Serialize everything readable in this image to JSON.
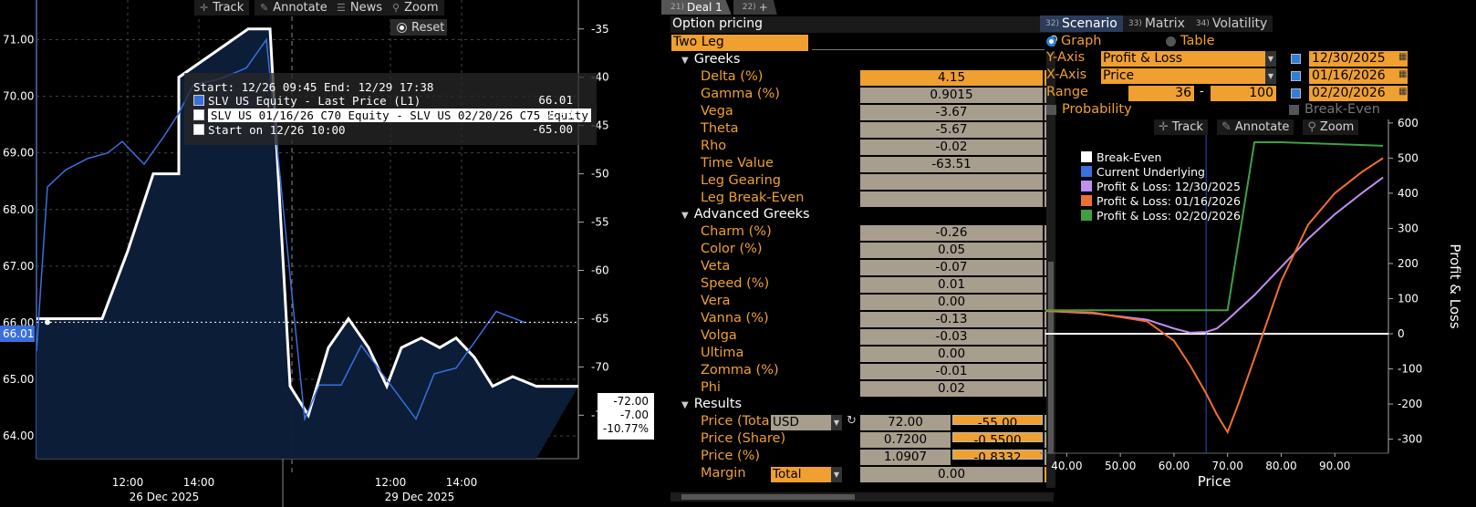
{
  "left_chart": {
    "toolbar": {
      "track": "Track",
      "annotate": "Annotate",
      "news": "News",
      "zoom": "Zoom",
      "reset": "Reset"
    },
    "legend": {
      "header": "Start: 12/26 09:45 End: 12/29 17:38",
      "rows": [
        {
          "label": "SLV US Equity - Last Price (L1)",
          "value": "66.01",
          "color": "#3a6fe0"
        },
        {
          "label": "SLV US 01/16/26 C70 Equity - SLV US 02/20/26 C75 Equity",
          "value": "-72.00",
          "color": "#ffffff"
        },
        {
          "label": "Start on 12/26 10:00",
          "value": "-65.00",
          "color": "#ffffff"
        }
      ]
    },
    "current_tag": "66.01",
    "right_tag": [
      "-72.00",
      "-7.00",
      "-10.77%"
    ],
    "x_labels": [
      "12:00",
      "14:00",
      "12:00",
      "14:00"
    ],
    "date_labels": [
      "26 Dec 2025",
      "29 Dec 2025"
    ]
  },
  "chart_data": [
    {
      "type": "line",
      "title": "",
      "left_axis": {
        "ticks": [
          "64.00",
          "65.00",
          "66.00",
          "67.00",
          "68.00",
          "69.00",
          "70.00",
          "71.00"
        ],
        "range": [
          63.6,
          71.7
        ]
      },
      "right_axis": {
        "ticks": [
          "-35",
          "-40",
          "-45",
          "-50",
          "-55",
          "-60",
          "-65",
          "-70",
          "-75"
        ],
        "range": [
          -79.5,
          -32.0
        ]
      },
      "series": [
        {
          "name": "SLV US Equity - Last Price (L1)",
          "axis": "left",
          "color": "#3a6fe0",
          "values": [
            65.5,
            68.4,
            68.7,
            68.9,
            69.0,
            69.2,
            68.8,
            69.3,
            69.7,
            70.2,
            70.3,
            70.5,
            71.0,
            66.5,
            64.3,
            64.9,
            64.9,
            65.6,
            64.3,
            65.1,
            65.2,
            66.2,
            66.0
          ]
        },
        {
          "name": "SLV US 01/16/26 C70 Equity - SLV US 02/20/26 C75 Equity",
          "axis": "right",
          "color": "#ffffff",
          "values": [
            -65,
            -65,
            -65,
            -65,
            -58,
            -50,
            -50,
            -40,
            -35,
            -35,
            -72,
            -75,
            -68,
            -65,
            -68,
            -72,
            -68,
            -67,
            -68,
            -67,
            -69,
            -72,
            -71,
            -72,
            -72
          ]
        }
      ]
    },
    {
      "type": "line",
      "title": "",
      "xlabel": "Price",
      "ylabel": "Profit & Loss",
      "x_ticks": [
        "40.00",
        "50.00",
        "60.00",
        "70.00",
        "80.00",
        "90.00"
      ],
      "y_ticks": [
        "600",
        "500",
        "400",
        "300",
        "200",
        "100",
        "0",
        "-100",
        "-200",
        "-300"
      ],
      "xlim": [
        35,
        100
      ],
      "ylim": [
        -340,
        610
      ],
      "legend_position": "top-left",
      "series": [
        {
          "name": "Break-Even",
          "color": "#ffffff",
          "x": [
            36,
            100
          ],
          "y": [
            0,
            0
          ]
        },
        {
          "name": "Current Underlying",
          "color": "#2050d0",
          "x": [
            66,
            66
          ],
          "y": [
            -340,
            610
          ]
        },
        {
          "name": "Profit & Loss: 12/30/2025",
          "color": "#c090f0",
          "x": [
            36,
            45,
            55,
            60,
            63,
            66,
            68,
            70,
            75,
            80,
            85,
            90,
            95,
            99
          ],
          "y": [
            65,
            58,
            40,
            15,
            3,
            5,
            15,
            40,
            110,
            190,
            270,
            340,
            400,
            445
          ]
        },
        {
          "name": "Profit & Loss: 01/16/2026",
          "color": "#f07030",
          "x": [
            36,
            45,
            55,
            60,
            63,
            66,
            68,
            70,
            72,
            75,
            80,
            85,
            90,
            95,
            99
          ],
          "y": [
            65,
            60,
            35,
            -20,
            -90,
            -170,
            -230,
            -280,
            -200,
            -70,
            150,
            310,
            400,
            460,
            500
          ]
        },
        {
          "name": "Profit & Loss: 02/20/2026",
          "color": "#40a040",
          "x": [
            36,
            70,
            75,
            80,
            90,
            99
          ],
          "y": [
            67,
            67,
            545,
            545,
            540,
            535
          ]
        }
      ]
    }
  ],
  "deal_tabs": [
    {
      "num": "21)",
      "label": "Deal 1"
    },
    {
      "num": "22)",
      "label": "+"
    }
  ],
  "option_pricing": {
    "title": "Option pricing",
    "strategy": "Two Leg",
    "sections": {
      "greeks": "Greeks",
      "advanced": "Advanced Greeks",
      "results": "Results"
    },
    "greeks": [
      {
        "label": "Delta (%)",
        "value": "4.15"
      },
      {
        "label": "Gamma (%)",
        "value": "0.9015"
      },
      {
        "label": "Vega",
        "value": "-3.67"
      },
      {
        "label": "Theta",
        "value": "-5.67"
      },
      {
        "label": "Rho",
        "value": "-0.02"
      },
      {
        "label": "Time Value",
        "value": "-63.51"
      },
      {
        "label": "Leg Gearing",
        "value": ""
      },
      {
        "label": "Leg Break-Even",
        "value": ""
      }
    ],
    "advanced": [
      {
        "label": "Charm (%)",
        "value": "-0.26"
      },
      {
        "label": "Color (%)",
        "value": "0.05"
      },
      {
        "label": "Veta",
        "value": "-0.07"
      },
      {
        "label": "Speed (%)",
        "value": "0.01"
      },
      {
        "label": "Vera",
        "value": "0.00"
      },
      {
        "label": "Vanna (%)",
        "value": "-0.13"
      },
      {
        "label": "Volga",
        "value": "-0.03"
      },
      {
        "label": "Ultima",
        "value": "0.00"
      },
      {
        "label": "Zomma (%)",
        "value": "-0.01"
      },
      {
        "label": "Phi",
        "value": "0.02"
      }
    ],
    "results": {
      "price_total_label": "Price (Tota",
      "currency": "USD",
      "price_total": [
        "72.00",
        "-55.00"
      ],
      "price_share_label": "Price (Share)",
      "price_share": [
        "0.7200",
        "-0.5500"
      ],
      "price_pct_label": "Price (%)",
      "price_pct": [
        "1.0907",
        "-0.8332"
      ],
      "margin_label": "Margin",
      "margin_mode": "Total",
      "margin": "0.00"
    }
  },
  "scenario": {
    "tabs": [
      {
        "num": "32)",
        "label": "Scenario"
      },
      {
        "num": "33)",
        "label": "Matrix"
      },
      {
        "num": "34)",
        "label": "Volatility"
      }
    ],
    "graph": "Graph",
    "table": "Table",
    "y_axis_label": "Y-Axis",
    "y_axis_value": "Profit & Loss",
    "x_axis_label": "X-Axis",
    "x_axis_value": "Price",
    "range_label": "Range",
    "range_from": "36",
    "range_sep": "-",
    "range_to": "100",
    "probability": "Probability",
    "break_even": "Break-Even",
    "dates": [
      "12/30/2025",
      "01/16/2026",
      "02/20/2026"
    ],
    "toolbar": {
      "track": "Track",
      "annotate": "Annotate",
      "zoom": "Zoom"
    },
    "legend": [
      "Break-Even",
      "Current Underlying",
      "Profit & Loss: 12/30/2025",
      "Profit & Loss: 01/16/2026",
      "Profit & Loss: 02/20/2026"
    ]
  }
}
